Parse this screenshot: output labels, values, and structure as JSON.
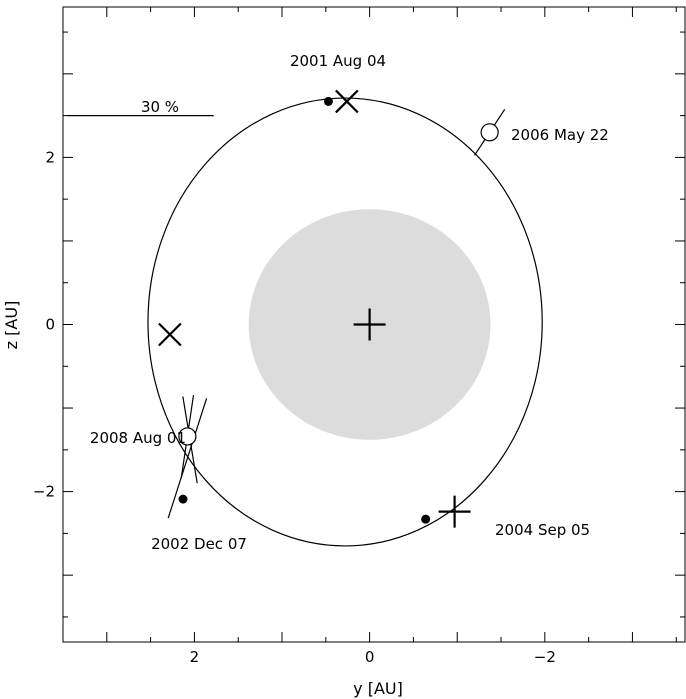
{
  "chart_data": {
    "type": "scatter",
    "xlabel": "y [AU]",
    "ylabel": "z [AU]",
    "xlim": [
      3.5,
      -3.6
    ],
    "ylim": [
      -3.8,
      3.8
    ],
    "x_reversed": true,
    "x_ticks": [
      2,
      0,
      -2
    ],
    "x_tick_labels": [
      "2",
      "0",
      "−2"
    ],
    "y_ticks": [
      2,
      0,
      -2
    ],
    "y_tick_labels": [
      "2",
      "0",
      "−2"
    ],
    "grid": false,
    "disk": {
      "center": [
        0,
        0
      ],
      "radius": 1.38,
      "color": "#dcdcdc"
    },
    "center_marker": {
      "x": 0,
      "y": 0,
      "marker": "plus"
    },
    "orbit": {
      "center": [
        0.28,
        0.03
      ],
      "semi_axis_y": 2.25,
      "semi_axis_z": 2.68,
      "color": "#000000"
    },
    "scale_bar": {
      "label": "30 %",
      "x_from": 3.45,
      "x_to": 1.78,
      "y": 2.5
    },
    "observations": [
      {
        "label": "2001 Aug 04",
        "x": 0.26,
        "y": 2.67,
        "marker": "x"
      },
      {
        "label": "2006 May 22",
        "x": -1.37,
        "y": 2.3,
        "marker": "open-circle",
        "pol_angle_from_x_deg": 58,
        "pol_length": 0.65
      },
      {
        "label": "2008 Aug 01",
        "x": 2.08,
        "y": -1.34,
        "marker": "open-circle",
        "pol_angle_from_x_deg": 82,
        "pol_length": 1.0
      },
      {
        "label": "2004 Sep 05",
        "x": -0.97,
        "y": -2.24,
        "marker": "plus"
      },
      {
        "label": "2002 Dec 07",
        "x": null,
        "y": null,
        "marker": "none"
      }
    ],
    "extra_markers": [
      {
        "x": 2.28,
        "y": -0.12,
        "marker": "x"
      },
      {
        "x": 0.47,
        "y": 2.67,
        "marker": "dot"
      },
      {
        "x": 2.13,
        "y": -2.09,
        "marker": "dot"
      },
      {
        "x": -0.64,
        "y": -2.33,
        "marker": "dot"
      }
    ],
    "extra_pol_lines": [
      {
        "x": 2.05,
        "y": -1.38,
        "pol_angle_from_x_deg": 99,
        "pol_length": 1.05
      },
      {
        "x": 2.08,
        "y": -1.6,
        "pol_angle_from_x_deg": 73,
        "pol_length": 1.5
      }
    ]
  }
}
